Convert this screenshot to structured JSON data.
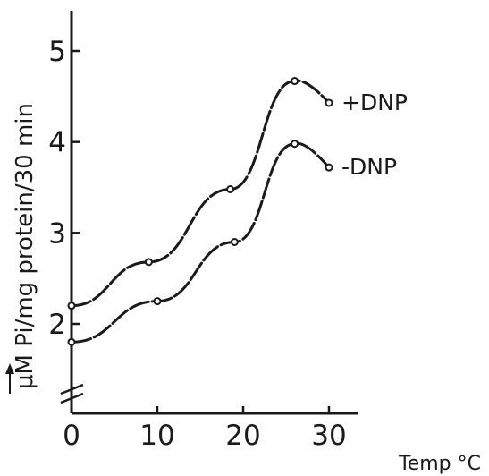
{
  "chart_data": {
    "type": "line",
    "xlabel": "Temp °C",
    "ylabel": "μM Pi/mg protein/30 min",
    "xlim": [
      0,
      36
    ],
    "ylim": [
      1,
      5.4
    ],
    "x_ticks": [
      "0",
      "10",
      "20",
      "30"
    ],
    "y_ticks": [
      "2",
      "3",
      "4",
      "5"
    ],
    "axis_break": true,
    "grid": false,
    "line_color": "#1a1a1a",
    "series": [
      {
        "name": "+DNP",
        "x": [
          0,
          9,
          18.5,
          26,
          30
        ],
        "y": [
          2.2,
          2.68,
          3.48,
          4.67,
          4.43
        ]
      },
      {
        "name": "-DNP",
        "x": [
          0,
          10,
          19,
          26,
          30
        ],
        "y": [
          1.8,
          2.25,
          2.9,
          3.98,
          3.72
        ]
      }
    ]
  }
}
